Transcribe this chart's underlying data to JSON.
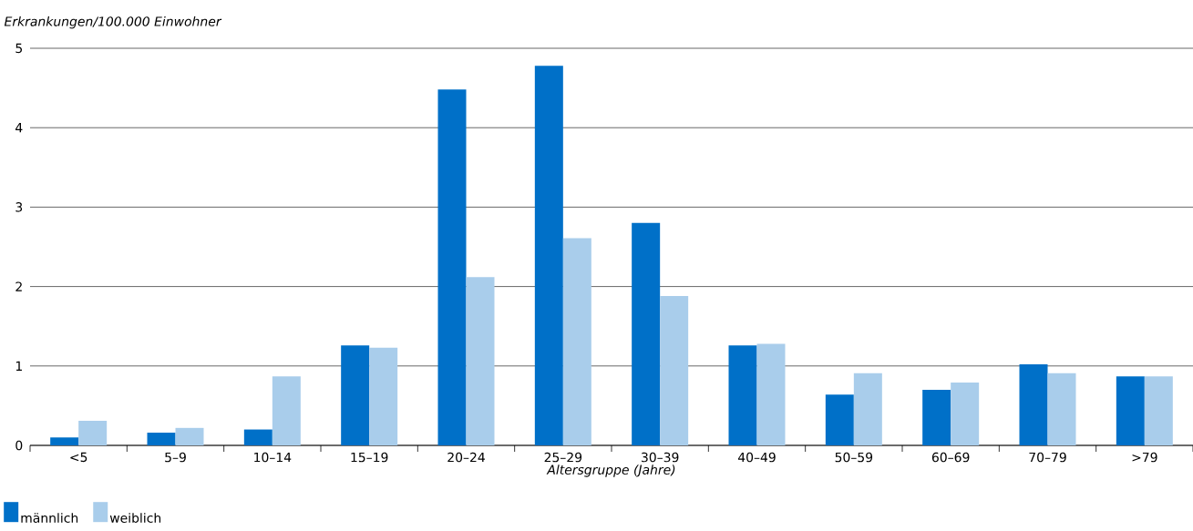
{
  "chart_data": {
    "type": "bar",
    "ylabel": "Erkrankungen/100.000 Einwohner",
    "xlabel": "Altersgruppe (Jahre)",
    "categories": [
      "<5",
      "5–9",
      "10–14",
      "15–19",
      "20–24",
      "25–29",
      "30–39",
      "40–49",
      "50–59",
      "60–69",
      "70–79",
      ">79"
    ],
    "series": [
      {
        "name": "männlich",
        "color": "#0070c8",
        "values": [
          0.1,
          0.16,
          0.2,
          1.26,
          4.48,
          4.78,
          2.8,
          1.26,
          0.64,
          0.7,
          1.02,
          0.87
        ]
      },
      {
        "name": "weiblich",
        "color": "#a9cdeb",
        "values": [
          0.31,
          0.22,
          0.87,
          1.23,
          2.12,
          2.61,
          1.88,
          1.28,
          0.91,
          0.79,
          0.91,
          0.87
        ]
      }
    ],
    "ylim": [
      0,
      5
    ],
    "yticks": [
      0,
      1,
      2,
      3,
      4,
      5
    ],
    "grid": "y",
    "legend": "bottom left"
  }
}
